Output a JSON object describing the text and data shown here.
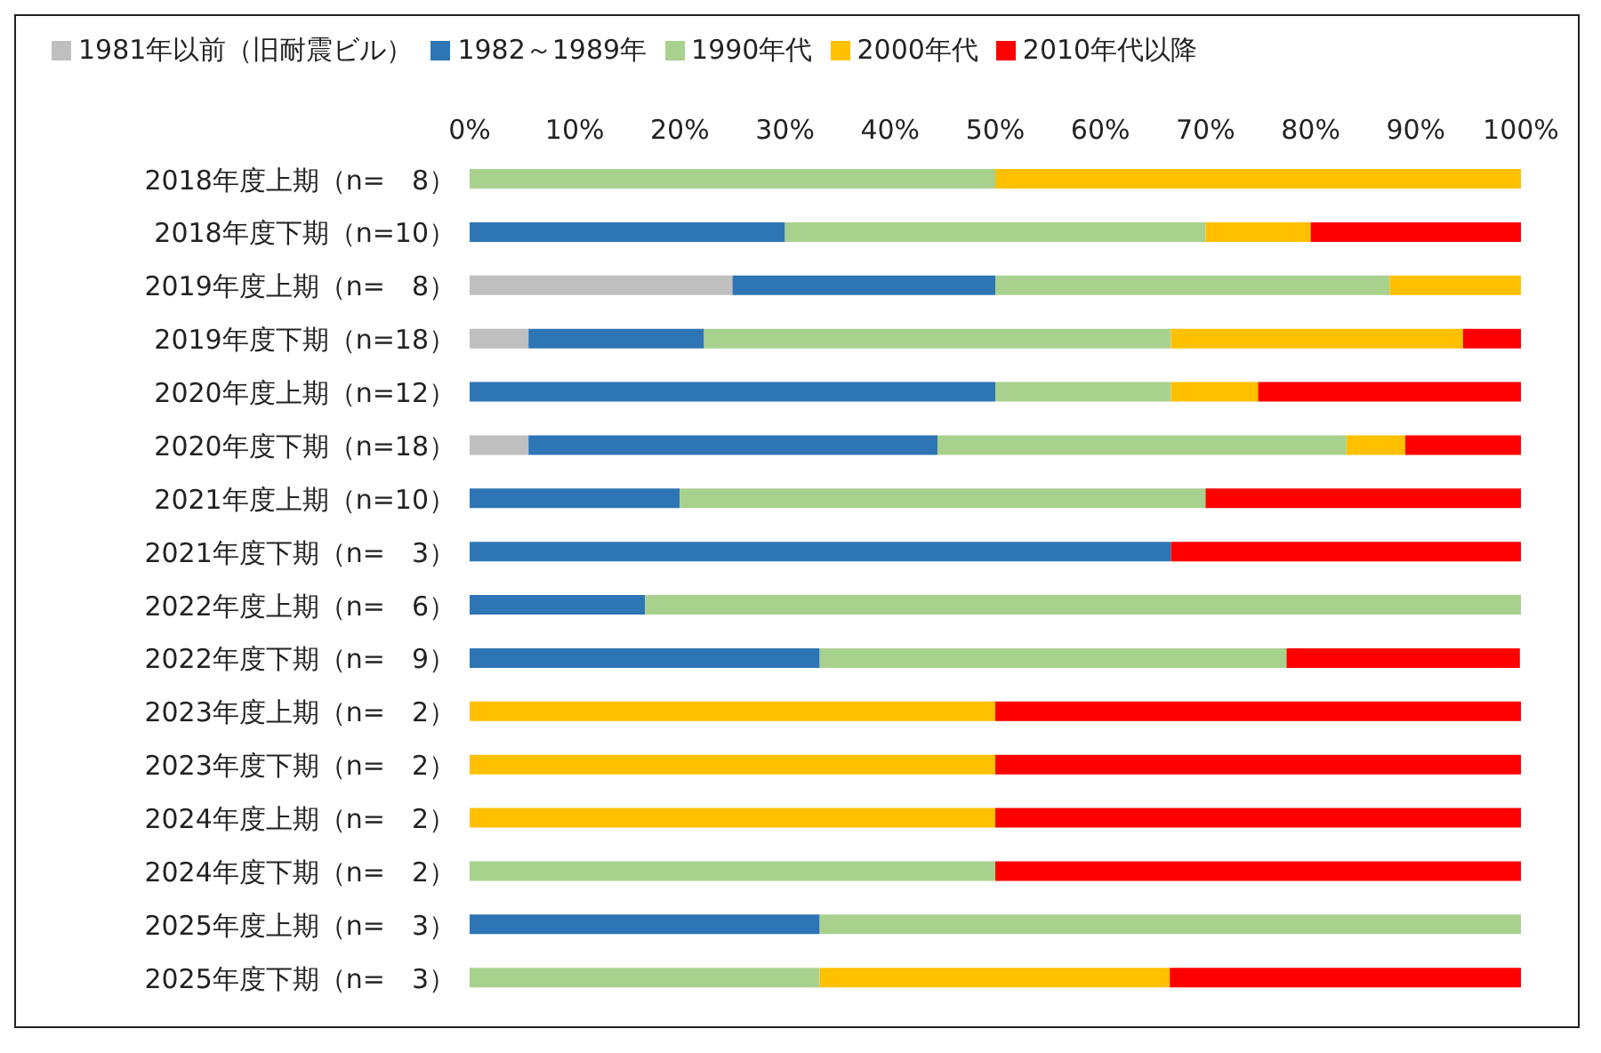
{
  "chart_data": {
    "type": "bar",
    "orientation": "horizontal",
    "stacked": true,
    "legend": "top left",
    "grid": false,
    "categories": [
      "2018年度上期（n=　8）",
      "2018年度下期（n=10）",
      "2019年度上期（n=　8）",
      "2019年度下期（n=18）",
      "2020年度上期（n=12）",
      "2020年度下期（n=18）",
      "2021年度上期（n=10）",
      "2021年度下期（n=　3）",
      "2022年度上期（n=　6）",
      "2022年度下期（n=　9）",
      "2023年度上期（n=　2）",
      "2023年度下期（n=　2）",
      "2024年度上期（n=　2）",
      "2024年度下期（n=　2）",
      "2025年度上期（n=　3）",
      "2025年度下期（n=　3）"
    ],
    "series": [
      {
        "name": "1981年以前（旧耐震ビル）",
        "color": "#bfbfbf",
        "values": [
          0,
          0,
          25,
          5.6,
          0,
          5.6,
          0,
          0,
          0,
          0,
          0,
          0,
          0,
          0,
          0,
          0
        ]
      },
      {
        "name": "1982～1989年",
        "color": "#2e75b6",
        "values": [
          0,
          30,
          25,
          16.7,
          50,
          38.9,
          20,
          66.7,
          16.7,
          33.3,
          0,
          0,
          0,
          0,
          33.3,
          0
        ]
      },
      {
        "name": "1990年代",
        "color": "#a9d18e",
        "values": [
          50,
          40,
          37.5,
          44.4,
          16.7,
          38.9,
          50,
          0,
          83.3,
          44.4,
          0,
          0,
          0,
          50,
          66.7,
          33.3
        ]
      },
      {
        "name": "2000年代",
        "color": "#ffc000",
        "values": [
          50,
          10,
          12.5,
          27.8,
          8.3,
          5.6,
          0,
          0,
          0,
          0,
          50,
          50,
          50,
          0,
          0,
          33.3
        ]
      },
      {
        "name": "2010年代以降",
        "color": "#ff0000",
        "values": [
          0,
          20,
          0,
          5.6,
          25,
          11.1,
          30,
          33.3,
          0,
          22.2,
          50,
          50,
          50,
          50,
          0,
          33.4
        ]
      }
    ],
    "xlim": [
      0,
      100
    ],
    "xticks": [
      {
        "value": 0,
        "label": "0%"
      },
      {
        "value": 10,
        "label": "10%"
      },
      {
        "value": 20,
        "label": "20%"
      },
      {
        "value": 30,
        "label": "30%"
      },
      {
        "value": 40,
        "label": "40%"
      },
      {
        "value": 50,
        "label": "50%"
      },
      {
        "value": 60,
        "label": "60%"
      },
      {
        "value": 70,
        "label": "70%"
      },
      {
        "value": 80,
        "label": "80%"
      },
      {
        "value": 90,
        "label": "90%"
      },
      {
        "value": 100,
        "label": "100%"
      }
    ]
  }
}
